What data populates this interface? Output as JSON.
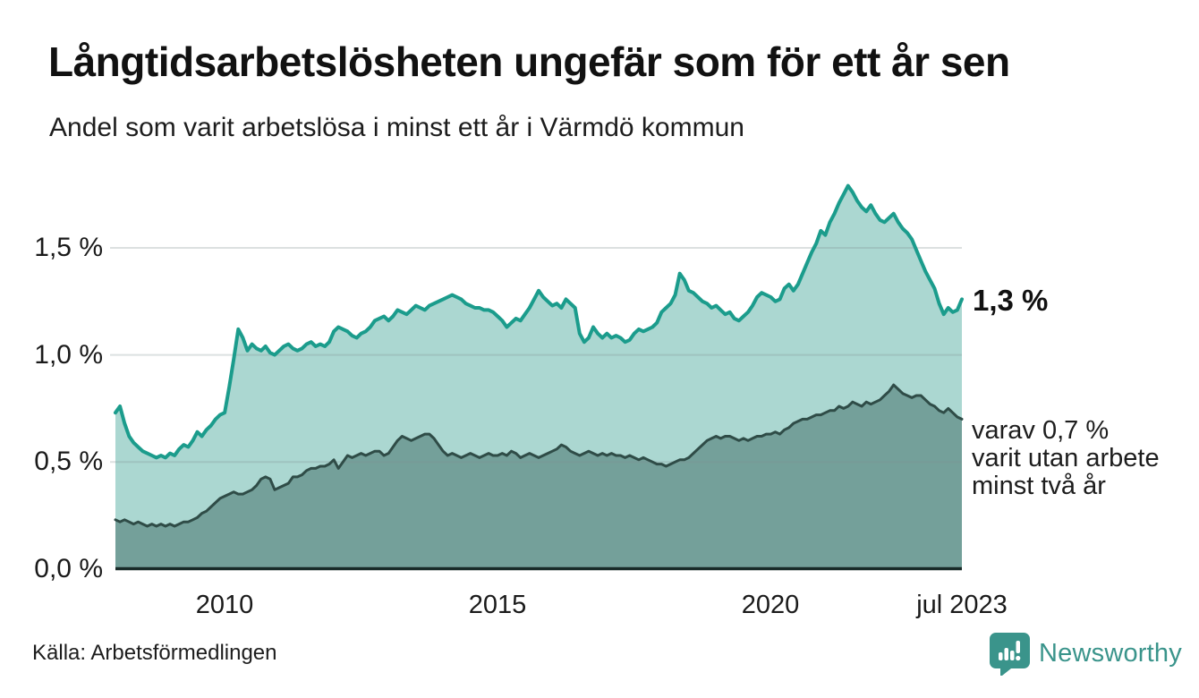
{
  "header": {
    "title": "Långtidsarbetslösheten ungefär som för ett år sen",
    "subtitle": "Andel som varit arbetslösa i minst ett år i Värmdö kommun"
  },
  "annotations": {
    "latest_total": "1,3 %",
    "secondary": [
      "varav 0,7 %",
      "varit utan arbete",
      "minst två år"
    ]
  },
  "footer": {
    "source": "Källa: Arbetsförmedlingen",
    "brand": "Newsworthy"
  },
  "colors": {
    "title_text": "#111111",
    "body_text": "#1d1d1d",
    "brand_teal": "#3a948b"
  },
  "chart_data": {
    "type": "area",
    "title": "Långtidsarbetslösheten ungefär som för ett år sen",
    "subtitle": "Andel som varit arbetslösa i minst ett år i Värmdö kommun",
    "unit": "%",
    "frequency": "monthly",
    "x_start": "2008-01",
    "x_end": "2023-07",
    "ylim": [
      0,
      1.9
    ],
    "grid": true,
    "grid_color": "rgba(130,145,145,0.28)",
    "baseline_color": "#182a28",
    "yticks": [
      {
        "value": 0.0,
        "label": "0,0 %"
      },
      {
        "value": 0.5,
        "label": "0,5 %"
      },
      {
        "value": 1.0,
        "label": "1,0 %"
      },
      {
        "value": 1.5,
        "label": "1,5 %"
      }
    ],
    "xticks": [
      {
        "month_index": 24,
        "label": "2010"
      },
      {
        "month_index": 84,
        "label": "2015"
      },
      {
        "month_index": 144,
        "label": "2020"
      },
      {
        "month_index": 186,
        "label": "jul 2023"
      }
    ],
    "series": [
      {
        "name": "Andel arbetslösa minst ett år",
        "end_label": "1,3 %",
        "line_color": "#1b9c8c",
        "fill_color": "#abd7d1",
        "line_width": 4,
        "values": [
          0.73,
          0.76,
          0.68,
          0.62,
          0.59,
          0.57,
          0.55,
          0.54,
          0.53,
          0.52,
          0.53,
          0.52,
          0.54,
          0.53,
          0.56,
          0.58,
          0.57,
          0.6,
          0.64,
          0.62,
          0.65,
          0.67,
          0.7,
          0.72,
          0.73,
          0.85,
          0.98,
          1.12,
          1.08,
          1.02,
          1.05,
          1.03,
          1.02,
          1.04,
          1.01,
          1.0,
          1.02,
          1.04,
          1.05,
          1.03,
          1.02,
          1.03,
          1.05,
          1.06,
          1.04,
          1.05,
          1.04,
          1.06,
          1.11,
          1.13,
          1.12,
          1.11,
          1.09,
          1.08,
          1.1,
          1.11,
          1.13,
          1.16,
          1.17,
          1.18,
          1.16,
          1.18,
          1.21,
          1.2,
          1.19,
          1.21,
          1.23,
          1.22,
          1.21,
          1.23,
          1.24,
          1.25,
          1.26,
          1.27,
          1.28,
          1.27,
          1.26,
          1.24,
          1.23,
          1.22,
          1.22,
          1.21,
          1.21,
          1.2,
          1.18,
          1.16,
          1.13,
          1.15,
          1.17,
          1.16,
          1.19,
          1.22,
          1.26,
          1.3,
          1.27,
          1.25,
          1.23,
          1.24,
          1.22,
          1.26,
          1.24,
          1.22,
          1.1,
          1.06,
          1.08,
          1.13,
          1.1,
          1.08,
          1.1,
          1.08,
          1.09,
          1.08,
          1.06,
          1.07,
          1.1,
          1.12,
          1.11,
          1.12,
          1.13,
          1.15,
          1.2,
          1.22,
          1.24,
          1.28,
          1.38,
          1.35,
          1.3,
          1.29,
          1.27,
          1.25,
          1.24,
          1.22,
          1.23,
          1.21,
          1.19,
          1.2,
          1.17,
          1.16,
          1.18,
          1.2,
          1.23,
          1.27,
          1.29,
          1.28,
          1.27,
          1.25,
          1.26,
          1.31,
          1.33,
          1.3,
          1.33,
          1.38,
          1.43,
          1.48,
          1.52,
          1.58,
          1.56,
          1.62,
          1.66,
          1.71,
          1.75,
          1.79,
          1.76,
          1.72,
          1.69,
          1.67,
          1.7,
          1.66,
          1.63,
          1.62,
          1.64,
          1.66,
          1.62,
          1.59,
          1.57,
          1.54,
          1.49,
          1.44,
          1.39,
          1.35,
          1.31,
          1.24,
          1.19,
          1.22,
          1.2,
          1.21,
          1.26
        ]
      },
      {
        "name": "varav utan arbete minst två år",
        "end_label": "varav 0,7 % varit utan arbete minst två år",
        "line_color": "#2f4c47",
        "fill_color": "#74a09a",
        "line_width": 3,
        "values": [
          0.23,
          0.22,
          0.23,
          0.22,
          0.21,
          0.22,
          0.21,
          0.2,
          0.21,
          0.2,
          0.21,
          0.2,
          0.21,
          0.2,
          0.21,
          0.22,
          0.22,
          0.23,
          0.24,
          0.26,
          0.27,
          0.29,
          0.31,
          0.33,
          0.34,
          0.35,
          0.36,
          0.35,
          0.35,
          0.36,
          0.37,
          0.39,
          0.42,
          0.43,
          0.42,
          0.37,
          0.38,
          0.39,
          0.4,
          0.43,
          0.43,
          0.44,
          0.46,
          0.47,
          0.47,
          0.48,
          0.48,
          0.49,
          0.51,
          0.47,
          0.5,
          0.53,
          0.52,
          0.53,
          0.54,
          0.53,
          0.54,
          0.55,
          0.55,
          0.53,
          0.54,
          0.57,
          0.6,
          0.62,
          0.61,
          0.6,
          0.61,
          0.62,
          0.63,
          0.63,
          0.61,
          0.58,
          0.55,
          0.53,
          0.54,
          0.53,
          0.52,
          0.53,
          0.54,
          0.53,
          0.52,
          0.53,
          0.54,
          0.53,
          0.53,
          0.54,
          0.53,
          0.55,
          0.54,
          0.52,
          0.53,
          0.54,
          0.53,
          0.52,
          0.53,
          0.54,
          0.55,
          0.56,
          0.58,
          0.57,
          0.55,
          0.54,
          0.53,
          0.54,
          0.55,
          0.54,
          0.53,
          0.54,
          0.53,
          0.54,
          0.53,
          0.53,
          0.52,
          0.53,
          0.52,
          0.51,
          0.52,
          0.51,
          0.5,
          0.49,
          0.49,
          0.48,
          0.49,
          0.5,
          0.51,
          0.51,
          0.52,
          0.54,
          0.56,
          0.58,
          0.6,
          0.61,
          0.62,
          0.61,
          0.62,
          0.62,
          0.61,
          0.6,
          0.61,
          0.6,
          0.61,
          0.62,
          0.62,
          0.63,
          0.63,
          0.64,
          0.63,
          0.65,
          0.66,
          0.68,
          0.69,
          0.7,
          0.7,
          0.71,
          0.72,
          0.72,
          0.73,
          0.74,
          0.74,
          0.76,
          0.75,
          0.76,
          0.78,
          0.77,
          0.76,
          0.78,
          0.77,
          0.78,
          0.79,
          0.81,
          0.83,
          0.86,
          0.84,
          0.82,
          0.81,
          0.8,
          0.81,
          0.81,
          0.79,
          0.77,
          0.76,
          0.74,
          0.73,
          0.75,
          0.73,
          0.71,
          0.7
        ]
      }
    ]
  }
}
